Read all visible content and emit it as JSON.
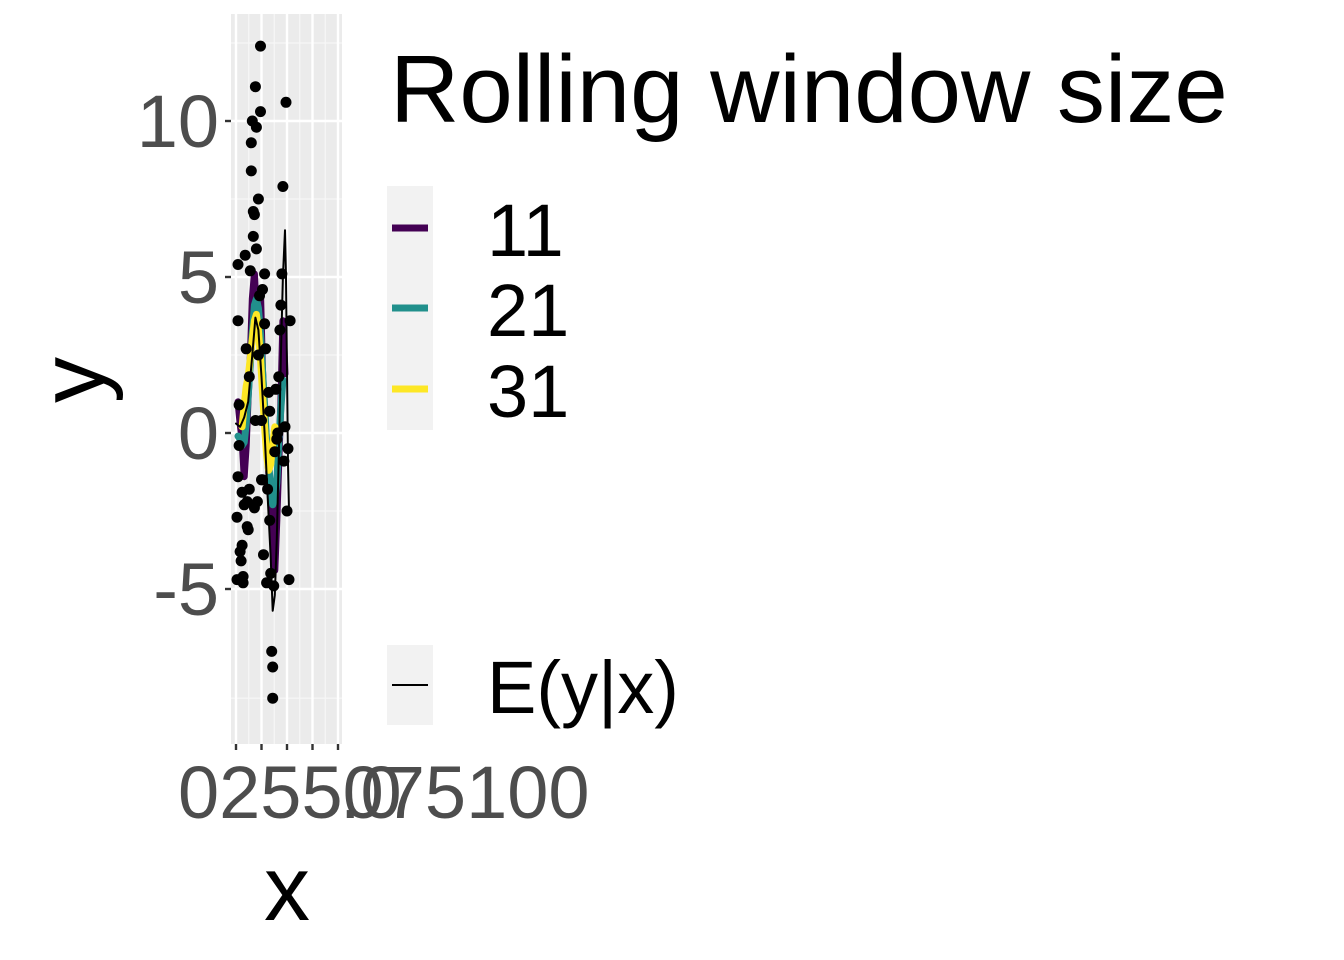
{
  "chart_data": {
    "type": "line",
    "xlabel": "x",
    "ylabel": "y",
    "xlim": [
      0,
      100
    ],
    "ylim": [
      -9.5,
      13.0
    ],
    "x_ticks": [
      0,
      25,
      50,
      75,
      100
    ],
    "x_tick_labels": [
      "0",
      "25",
      "50",
      "75",
      "100"
    ],
    "x_tick_labels_overlapped_render": "0255075100",
    "x_tick_labels_overlap_suffix": ".0",
    "y_ticks": [
      -5,
      0,
      5,
      10
    ],
    "y_tick_labels": [
      "-5",
      "0",
      "5",
      "10"
    ],
    "grid": true,
    "legend": {
      "placement": "right",
      "title": "Rolling window size",
      "entries": [
        {
          "label": "11",
          "color": "#440154"
        },
        {
          "label": "21",
          "color": "#21908C"
        },
        {
          "label": "31",
          "color": "#FDE725"
        }
      ],
      "secondary_entry": {
        "label": "E(y|x)",
        "color": "#000000"
      }
    },
    "scatter_points": [
      [
        1,
        -4.7
      ],
      [
        1,
        -2.7
      ],
      [
        2,
        -1.4
      ],
      [
        2,
        3.6
      ],
      [
        2,
        5.4
      ],
      [
        3,
        0.9
      ],
      [
        3,
        -0.4
      ],
      [
        4,
        -3.8
      ],
      [
        5,
        -4.1
      ],
      [
        6,
        -3.6
      ],
      [
        6,
        -1.9
      ],
      [
        7,
        -4.6
      ],
      [
        7,
        -4.8
      ],
      [
        8,
        -2.3
      ],
      [
        9,
        5.7
      ],
      [
        10,
        2.7
      ],
      [
        11,
        -3.0
      ],
      [
        12,
        -3.1
      ],
      [
        13,
        -1.8
      ],
      [
        13,
        1.8
      ],
      [
        14,
        5.2
      ],
      [
        15,
        9.3
      ],
      [
        15,
        8.4
      ],
      [
        16,
        10.0
      ],
      [
        17,
        7.1
      ],
      [
        17,
        6.3
      ],
      [
        18,
        7.0
      ],
      [
        18,
        -2.4
      ],
      [
        19,
        0.4
      ],
      [
        19,
        11.1
      ],
      [
        20,
        5.9
      ],
      [
        21,
        -2.2
      ],
      [
        22,
        7.5
      ],
      [
        22,
        2.5
      ],
      [
        23,
        4.4
      ],
      [
        24,
        10.3
      ],
      [
        24,
        12.4
      ],
      [
        25,
        0.4
      ],
      [
        25,
        -1.5
      ],
      [
        26,
        -1.5
      ],
      [
        27,
        -3.9
      ],
      [
        28,
        5.1
      ],
      [
        29,
        2.7
      ],
      [
        30,
        -4.8
      ],
      [
        31,
        -1.8
      ],
      [
        32,
        1.3
      ],
      [
        33,
        0.7
      ],
      [
        34,
        -4.5
      ],
      [
        35,
        -7.0
      ],
      [
        36,
        -8.5
      ],
      [
        36,
        -7.5
      ],
      [
        37,
        -4.9
      ],
      [
        38,
        -0.6
      ],
      [
        39,
        1.4
      ],
      [
        40,
        -0.2
      ],
      [
        41,
        0.0
      ],
      [
        42,
        1.8
      ],
      [
        43,
        3.3
      ],
      [
        44,
        4.1
      ],
      [
        45,
        5.1
      ],
      [
        46,
        7.9
      ],
      [
        47,
        -0.9
      ],
      [
        48,
        0.2
      ],
      [
        49,
        10.6
      ],
      [
        50,
        -2.5
      ],
      [
        51,
        -0.5
      ],
      [
        52,
        -4.7
      ],
      [
        53,
        3.6
      ],
      [
        33,
        -2.8
      ],
      [
        28,
        3.5
      ],
      [
        11,
        -2.2
      ],
      [
        20,
        9.8
      ],
      [
        26,
        4.6
      ]
    ],
    "series": [
      {
        "name": "11",
        "color": "#440154",
        "points": [
          [
            2,
            1.0
          ],
          [
            4,
            0.3
          ],
          [
            6,
            -0.2
          ],
          [
            8,
            -1.4
          ],
          [
            10,
            -0.4
          ],
          [
            12,
            1.2
          ],
          [
            14,
            2.4
          ],
          [
            16,
            4.3
          ],
          [
            18,
            5.1
          ],
          [
            20,
            3.8
          ],
          [
            22,
            4.5
          ],
          [
            24,
            4.5
          ],
          [
            26,
            2.0
          ],
          [
            28,
            0.6
          ],
          [
            30,
            -0.4
          ],
          [
            32,
            -1.2
          ],
          [
            34,
            -2.2
          ],
          [
            36,
            -3.3
          ],
          [
            38,
            -4.4
          ],
          [
            40,
            -2.8
          ],
          [
            42,
            -0.9
          ],
          [
            44,
            1.0
          ],
          [
            46,
            3.6
          ],
          [
            48,
            1.9
          ]
        ]
      },
      {
        "name": "21",
        "color": "#21908C",
        "points": [
          [
            2,
            -0.1
          ],
          [
            4,
            -0.2
          ],
          [
            6,
            -0.4
          ],
          [
            8,
            -0.3
          ],
          [
            10,
            0.3
          ],
          [
            12,
            1.2
          ],
          [
            14,
            2.2
          ],
          [
            16,
            3.2
          ],
          [
            18,
            4.1
          ],
          [
            20,
            4.3
          ],
          [
            22,
            4.0
          ],
          [
            24,
            3.2
          ],
          [
            26,
            2.0
          ],
          [
            28,
            0.9
          ],
          [
            30,
            -0.3
          ],
          [
            32,
            -1.0
          ],
          [
            34,
            -1.7
          ],
          [
            36,
            -2.3
          ],
          [
            38,
            -2.1
          ],
          [
            40,
            -1.6
          ],
          [
            42,
            -0.3
          ],
          [
            44,
            0.8
          ],
          [
            46,
            1.7
          ]
        ]
      },
      {
        "name": "31",
        "color": "#FDE725",
        "points": [
          [
            6,
            0.2
          ],
          [
            8,
            0.9
          ],
          [
            10,
            1.5
          ],
          [
            12,
            1.8
          ],
          [
            14,
            2.4
          ],
          [
            16,
            3.0
          ],
          [
            18,
            3.6
          ],
          [
            20,
            3.8
          ],
          [
            22,
            3.3
          ],
          [
            24,
            2.4
          ],
          [
            26,
            1.3
          ],
          [
            28,
            0.2
          ],
          [
            30,
            -0.7
          ],
          [
            32,
            -1.2
          ],
          [
            34,
            -1.0
          ],
          [
            36,
            -0.4
          ],
          [
            38,
            0.2
          ],
          [
            40,
            0.1
          ]
        ]
      },
      {
        "name": "E(y|x)",
        "color": "#000000",
        "points": [
          [
            0,
            0.3
          ],
          [
            4,
            0.2
          ],
          [
            8,
            0.5
          ],
          [
            12,
            1.0
          ],
          [
            16,
            2.5
          ],
          [
            19,
            3.7
          ],
          [
            22,
            3.3
          ],
          [
            25,
            1.8
          ],
          [
            28,
            0.0
          ],
          [
            31,
            -2.0
          ],
          [
            34,
            -4.0
          ],
          [
            36,
            -5.7
          ],
          [
            38,
            -5.2
          ],
          [
            40,
            -3.4
          ],
          [
            42,
            -0.7
          ],
          [
            44,
            2.5
          ],
          [
            46,
            5.0
          ],
          [
            48,
            6.5
          ],
          [
            49,
            5.0
          ],
          [
            50,
            2.0
          ],
          [
            51,
            -1.0
          ],
          [
            52,
            -2.5
          ]
        ]
      }
    ]
  }
}
